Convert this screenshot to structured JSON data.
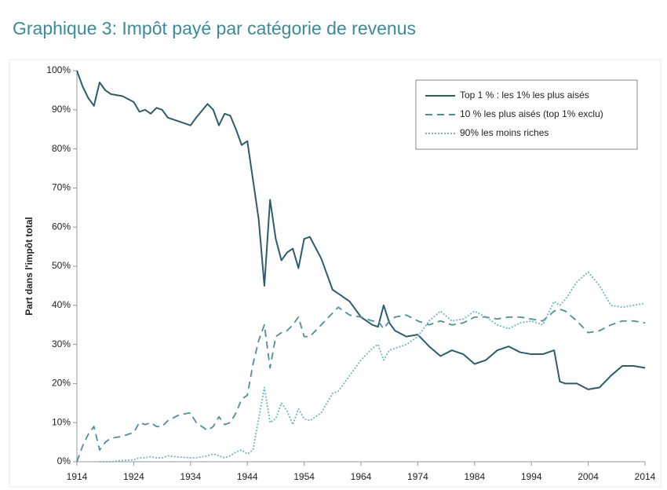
{
  "chart_data": {
    "type": "line",
    "title": "Graphique 3: Impôt payé par catégorie de revenus",
    "ylabel": "Part dans l'impôt total",
    "x": [
      1914,
      1915,
      1916,
      1917,
      1918,
      1919,
      1920,
      1922,
      1924,
      1925,
      1926,
      1927,
      1928,
      1929,
      1930,
      1932,
      1934,
      1935,
      1937,
      1938,
      1939,
      1940,
      1941,
      1942,
      1943,
      1944,
      1945,
      1946,
      1947,
      1948,
      1949,
      1950,
      1951,
      1952,
      1953,
      1954,
      1955,
      1957,
      1959,
      1960,
      1962,
      1964,
      1966,
      1967,
      1968,
      1969,
      1970,
      1972,
      1974,
      1976,
      1978,
      1980,
      1982,
      1984,
      1986,
      1988,
      1990,
      1992,
      1994,
      1996,
      1998,
      1999,
      2000,
      2002,
      2004,
      2006,
      2008,
      2010,
      2012,
      2014
    ],
    "series": [
      {
        "name": "Top 1 % : les 1% les plus aisés",
        "color": "#2b5d6d",
        "dash": "solid",
        "values": [
          100,
          96,
          93,
          91,
          97,
          95,
          94,
          93.5,
          92,
          89.5,
          90,
          89,
          90.5,
          90,
          88,
          87,
          86,
          88,
          91.5,
          90,
          86,
          89,
          88.5,
          85,
          81,
          82,
          72,
          62,
          45,
          67,
          57,
          51.5,
          53.5,
          54.5,
          49.5,
          57,
          57.5,
          52,
          44,
          43,
          41,
          37,
          35,
          34.5,
          40,
          35.5,
          33.5,
          32,
          32.5,
          29.5,
          27,
          28.5,
          27.5,
          25,
          26,
          28.5,
          29.5,
          28,
          27.5,
          27.5,
          28.5,
          20.5,
          20,
          20,
          18.5,
          19,
          22,
          24.5,
          24.5,
          24
        ]
      },
      {
        "name": "10 % les plus aisés (top 1% exclu)",
        "color": "#4a8ea5",
        "dash": "dashed",
        "values": [
          0,
          4,
          7,
          9,
          3,
          5,
          6,
          6.5,
          7.5,
          10,
          9.5,
          10,
          9,
          9,
          10.5,
          12,
          12.5,
          10,
          8,
          9,
          11.5,
          9.5,
          10,
          12.5,
          16,
          17,
          25,
          31,
          35,
          24,
          32,
          33,
          33.5,
          35,
          37,
          32,
          32,
          35,
          38,
          39.5,
          37.5,
          37,
          36,
          36,
          34,
          36,
          37,
          37.5,
          36,
          35,
          36,
          35,
          35.5,
          37,
          37,
          36.5,
          37,
          37,
          36.5,
          36,
          38.5,
          39,
          38.5,
          36,
          33,
          33.5,
          35,
          36,
          36,
          35.5
        ]
      },
      {
        "name": "90% les moins riches",
        "color": "#6bb7cb",
        "dash": "dotted",
        "values": [
          null,
          null,
          null,
          null,
          0,
          0,
          0,
          0.3,
          0.5,
          1,
          1,
          1.3,
          1,
          1,
          1.5,
          1.2,
          1,
          1,
          1.5,
          2,
          1.5,
          1,
          1.5,
          2.5,
          3,
          2,
          3,
          11,
          19,
          10,
          11,
          15,
          13,
          9.5,
          13.5,
          11,
          10.5,
          12.5,
          17.5,
          18,
          22,
          26,
          29,
          30,
          26,
          28.5,
          29,
          30,
          32,
          36,
          38.5,
          36,
          36.5,
          38.5,
          37,
          35,
          34,
          35.5,
          36,
          35,
          41,
          40,
          41.5,
          46,
          48.5,
          45,
          40,
          39.5,
          40,
          40.5
        ]
      }
    ],
    "xlim": [
      1914,
      2014
    ],
    "xticks": [
      1914,
      1924,
      1934,
      1944,
      1954,
      1964,
      1974,
      1984,
      1994,
      2004,
      2014
    ],
    "ylim": [
      0,
      100
    ],
    "yticks": [
      {
        "value": 0,
        "label": "0%"
      },
      {
        "value": 10,
        "label": "10%"
      },
      {
        "value": 20,
        "label": "20%"
      },
      {
        "value": 30,
        "label": "30%"
      },
      {
        "value": 40,
        "label": "40%"
      },
      {
        "value": 50,
        "label": "50%"
      },
      {
        "value": 60,
        "label": "60%"
      },
      {
        "value": 70,
        "label": "70%"
      },
      {
        "value": 80,
        "label": "80%"
      },
      {
        "value": 90,
        "label": "90%"
      },
      {
        "value": 100,
        "label": "100%"
      }
    ],
    "grid": false,
    "legend": "top-right"
  }
}
